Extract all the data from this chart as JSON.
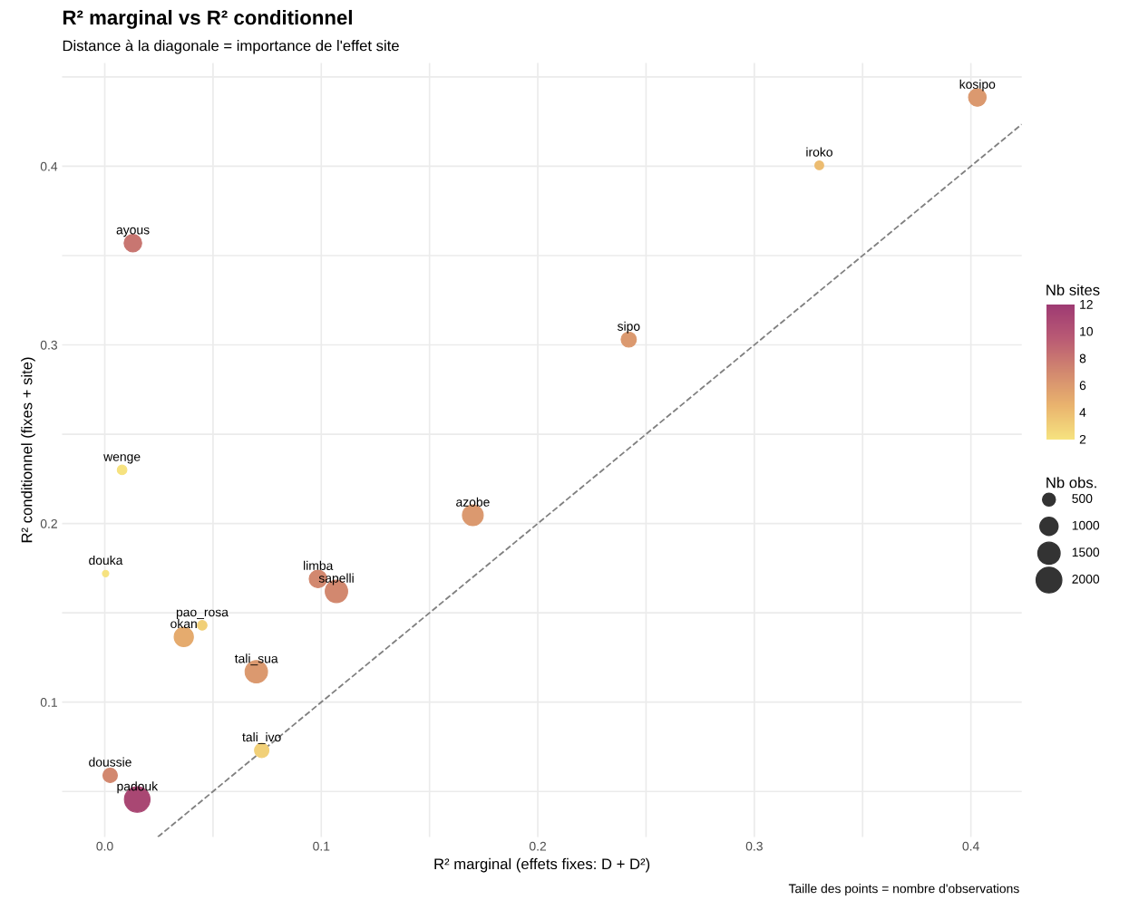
{
  "chart_data": {
    "type": "bubble",
    "title": "R² marginal vs R² conditionnel",
    "subtitle": "Distance à la diagonale = importance de l'effet site",
    "xlabel": "R² marginal (effets fixes: D + D²)",
    "ylabel": "R² conditionnel (fixes + site)",
    "clabel": "Nb sites",
    "legend_title": "Nb obs.",
    "x": [
      0.403,
      0.33,
      0.013,
      0.242,
      0.008,
      0.17,
      0.0004,
      0.0985,
      0.107,
      0.045,
      0.0365,
      0.07,
      0.0725,
      0.0025,
      0.015
    ],
    "values": [
      0.4385,
      0.4005,
      0.357,
      0.303,
      0.23,
      0.2046,
      0.172,
      0.169,
      0.162,
      0.143,
      0.1365,
      0.117,
      0.073,
      0.059,
      0.0455
    ],
    "sizes": [
      945,
      236,
      945,
      705,
      281,
      1320,
      125,
      945,
      1530,
      281,
      1125,
      1530,
      633,
      633,
      2000
    ],
    "cvalues": [
      6,
      4,
      8,
      6,
      2,
      6,
      2,
      7,
      7,
      3,
      5,
      6,
      3,
      7,
      11
    ],
    "colors": [
      "#db996f",
      "#ecbc71",
      "#c87671",
      "#db996f",
      "#f6e27f",
      "#db996f",
      "#f6e27f",
      "#d2886f",
      "#d2886f",
      "#f1cf78",
      "#e4aa6e",
      "#db996f",
      "#f1cf78",
      "#d2886f",
      "#a94773"
    ],
    "size_legend": [
      500,
      1000,
      1500,
      2000
    ],
    "clim": [
      2,
      12
    ],
    "cticks": [
      2,
      4,
      6,
      8,
      10,
      12
    ],
    "series": [
      {
        "type": "line",
        "x": [
          0.0245,
          0.4235
        ],
        "values": [
          0.0245,
          0.4235
        ],
        "color": "#808080",
        "line_style": "dashed"
      }
    ],
    "xlim": [
      -0.0197,
      0.4235
    ],
    "ylim": [
      0.0245,
      0.4578
    ],
    "xticks": [
      {
        "value": 0.0,
        "label": "0.0"
      },
      {
        "value": 0.05,
        "label": null
      },
      0.1,
      {
        "value": 0.15,
        "label": null
      },
      0.2,
      {
        "value": 0.25,
        "label": null
      },
      0.3,
      {
        "value": 0.35,
        "label": null
      },
      0.4
    ],
    "yticks": [
      {
        "value": 0.05,
        "label": null
      },
      0.1,
      {
        "value": 0.15,
        "label": null
      },
      0.2,
      {
        "value": 0.25,
        "label": null
      },
      0.3,
      {
        "value": 0.35,
        "label": null
      },
      0.4,
      {
        "value": 0.45,
        "label": null
      }
    ],
    "grid": true,
    "annotations": [
      {
        "text": "kosipo",
        "x": 0.403,
        "y": 0.4385
      },
      {
        "text": "iroko",
        "x": 0.33,
        "y": 0.4005
      },
      {
        "text": "ayous",
        "x": 0.013,
        "y": 0.357
      },
      {
        "text": "sipo",
        "x": 0.242,
        "y": 0.303
      },
      {
        "text": "wenge",
        "x": 0.008,
        "y": 0.23
      },
      {
        "text": "azobe",
        "x": 0.17,
        "y": 0.2046
      },
      {
        "text": "douka",
        "x": 0.0004,
        "y": 0.172
      },
      {
        "text": "limba",
        "x": 0.0985,
        "y": 0.169
      },
      {
        "text": "sapelli",
        "x": 0.107,
        "y": 0.162
      },
      {
        "text": "pao_rosa",
        "x": 0.045,
        "y": 0.143
      },
      {
        "text": "okan",
        "x": 0.0365,
        "y": 0.1365
      },
      {
        "text": "tali_sua",
        "x": 0.07,
        "y": 0.117
      },
      {
        "text": "tali_ivo",
        "x": 0.0725,
        "y": 0.073
      },
      {
        "text": "doussie",
        "x": 0.0025,
        "y": 0.059
      },
      {
        "text": "padouk",
        "x": 0.015,
        "y": 0.0455
      },
      "Taille des points = nombre d'observations"
    ]
  }
}
